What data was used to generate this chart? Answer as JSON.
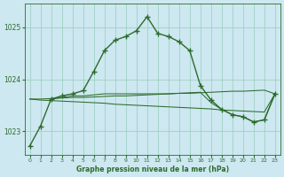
{
  "title": "Graphe pression niveau de la mer (hPa)",
  "bg_color": "#cde8f0",
  "line_color": "#2d6b2d",
  "grid_color": "#99ccbb",
  "xlim": [
    -0.5,
    23.5
  ],
  "ylim": [
    1022.55,
    1025.45
  ],
  "yticks": [
    1023,
    1024,
    1025
  ],
  "xticks": [
    0,
    1,
    2,
    3,
    4,
    5,
    6,
    7,
    8,
    9,
    10,
    11,
    12,
    13,
    14,
    15,
    16,
    17,
    18,
    19,
    20,
    21,
    22,
    23
  ],
  "main_line": {
    "x": [
      0,
      1,
      2,
      3,
      4,
      5,
      6,
      7,
      8,
      9,
      10,
      11,
      12,
      13,
      14,
      15,
      16,
      17,
      18,
      19,
      20,
      21,
      22,
      23
    ],
    "y": [
      1022.72,
      1023.1,
      1023.62,
      1023.68,
      1023.72,
      1023.78,
      1024.15,
      1024.55,
      1024.75,
      1024.82,
      1024.93,
      1025.2,
      1024.88,
      1024.82,
      1024.72,
      1024.55,
      1023.88,
      1023.6,
      1023.42,
      1023.32,
      1023.28,
      1023.18,
      1023.22,
      1023.72
    ]
  },
  "line2": {
    "x": [
      0,
      1,
      2,
      3,
      4,
      5,
      6,
      7,
      8,
      9,
      10,
      11,
      12,
      13,
      14,
      15,
      16,
      17,
      18,
      19,
      20,
      21,
      22,
      23
    ],
    "y": [
      1023.62,
      1023.62,
      1023.63,
      1023.64,
      1023.65,
      1023.65,
      1023.66,
      1023.67,
      1023.68,
      1023.68,
      1023.69,
      1023.7,
      1023.71,
      1023.72,
      1023.73,
      1023.73,
      1023.74,
      1023.75,
      1023.76,
      1023.77,
      1023.77,
      1023.78,
      1023.79,
      1023.72
    ]
  },
  "line3": {
    "x": [
      0,
      1,
      2,
      3,
      4,
      5,
      6,
      7,
      8,
      9,
      10,
      11,
      12,
      13,
      14,
      15,
      16,
      17,
      18,
      19,
      20,
      21,
      22,
      23
    ],
    "y": [
      1023.62,
      1023.6,
      1023.59,
      1023.58,
      1023.57,
      1023.56,
      1023.55,
      1023.54,
      1023.52,
      1023.51,
      1023.5,
      1023.49,
      1023.48,
      1023.47,
      1023.46,
      1023.45,
      1023.44,
      1023.43,
      1023.41,
      1023.4,
      1023.39,
      1023.38,
      1023.37,
      1023.72
    ]
  },
  "line4": {
    "x": [
      2,
      3,
      4,
      5,
      6,
      7,
      8,
      9,
      10,
      11,
      12,
      13,
      14,
      15,
      16,
      17,
      18,
      19,
      20,
      21,
      22,
      23
    ],
    "y": [
      1023.62,
      1023.65,
      1023.68,
      1023.68,
      1023.7,
      1023.72,
      1023.72,
      1023.72,
      1023.72,
      1023.72,
      1023.72,
      1023.72,
      1023.73,
      1023.74,
      1023.75,
      1023.55,
      1023.42,
      1023.32,
      1023.28,
      1023.18,
      1023.22,
      1023.72
    ]
  }
}
